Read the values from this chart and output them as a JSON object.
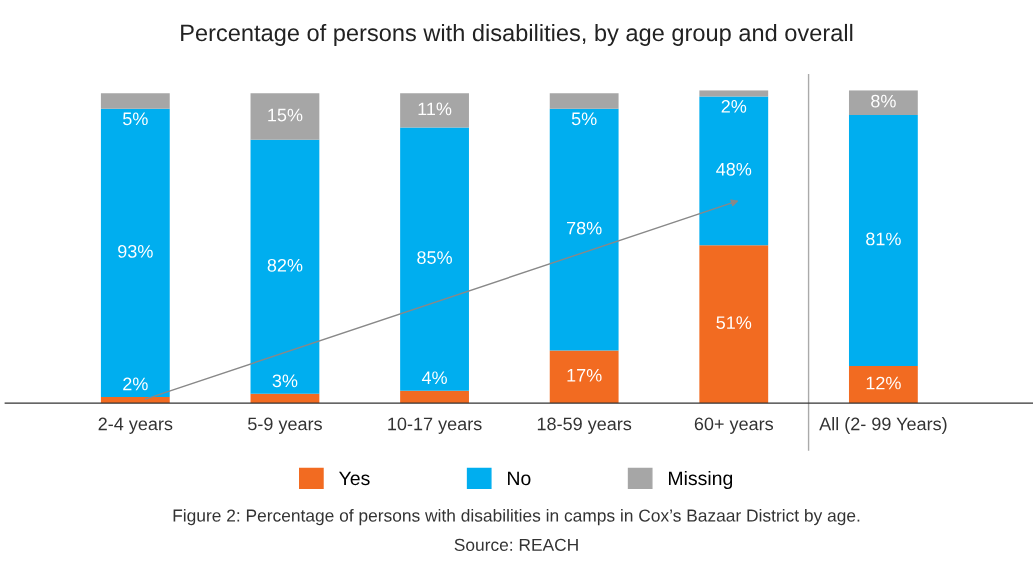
{
  "chart_data": {
    "type": "bar",
    "stacked": true,
    "title": "Percentage of persons with disabilities, by age group and overall",
    "categories": [
      "2-4 years",
      "5-9 years",
      "10-17 years",
      "18-59 years",
      "60+ years",
      "All (2- 99 Years)"
    ],
    "series": [
      {
        "name": "Yes",
        "color": "#f26b21",
        "values": [
          2,
          3,
          4,
          17,
          51,
          12
        ],
        "value_labels": [
          "2%",
          "3%",
          "4%",
          "17%",
          "51%",
          "12%"
        ]
      },
      {
        "name": "No",
        "color": "#00aeef",
        "values": [
          93,
          82,
          85,
          78,
          48,
          81
        ],
        "value_labels": [
          "93%",
          "82%",
          "85%",
          "78%",
          "48%",
          "81%"
        ]
      },
      {
        "name": "Missing",
        "color": "#a6a6a6",
        "values": [
          5,
          15,
          11,
          5,
          2,
          8
        ],
        "value_labels": [
          "5%",
          "15%",
          "11%",
          "5%",
          "2%",
          "8%"
        ]
      }
    ],
    "legend": "bottom",
    "tick_labels": "x",
    "grid": false,
    "annotations": [
      "Figure 2: Percentage of persons with disabilities in camps in Cox’s Bazaar District by age.",
      "Source: REACH"
    ]
  }
}
